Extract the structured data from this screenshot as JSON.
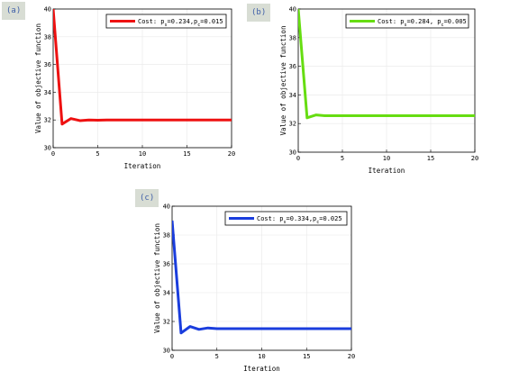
{
  "chart_data": [
    {
      "type": "line",
      "panel_label": "(a)",
      "xlabel": "Iteration",
      "ylabel": "Value of objective function",
      "xlim": [
        0,
        20
      ],
      "ylim": [
        30,
        40
      ],
      "xticks": [
        "0",
        "5",
        "10",
        "15",
        "20"
      ],
      "yticks": [
        "30",
        "32",
        "34",
        "36",
        "38",
        "40"
      ],
      "grid": true,
      "legend_placement": "top-right",
      "legend_label": "Cost: p_s=0.234,p_c=0.015",
      "series": [
        {
          "name": "Cost: p_s=0.234,p_c=0.015",
          "color": "#ee1111",
          "x": [
            0,
            1,
            2,
            3,
            4,
            5,
            6,
            7,
            8,
            9,
            10,
            11,
            12,
            13,
            14,
            15,
            16,
            17,
            18,
            19,
            20
          ],
          "y": [
            40,
            31.7,
            32.1,
            31.95,
            32.0,
            31.98,
            32.0,
            32.0,
            32.0,
            32.0,
            32.0,
            32.0,
            32.0,
            32.0,
            32.0,
            32.0,
            32.0,
            32.0,
            32.0,
            32.0,
            32.0
          ]
        }
      ]
    },
    {
      "type": "line",
      "panel_label": "(b)",
      "xlabel": "Iteration",
      "ylabel": "Value of objective function",
      "xlim": [
        0,
        20
      ],
      "ylim": [
        30,
        40
      ],
      "xticks": [
        "0",
        "5",
        "10",
        "15",
        "20"
      ],
      "yticks": [
        "30",
        "32",
        "34",
        "36",
        "38",
        "40"
      ],
      "grid": true,
      "legend_placement": "top-right",
      "legend_label": "Cost: p_s=0.284, p_c=0.005",
      "series": [
        {
          "name": "Cost: p_s=0.284, p_c=0.005",
          "color": "#66dd11",
          "x": [
            0,
            1,
            2,
            3,
            4,
            5,
            6,
            7,
            8,
            9,
            10,
            11,
            12,
            13,
            14,
            15,
            16,
            17,
            18,
            19,
            20
          ],
          "y": [
            40,
            32.4,
            32.6,
            32.55,
            32.55,
            32.55,
            32.55,
            32.55,
            32.55,
            32.55,
            32.55,
            32.55,
            32.55,
            32.55,
            32.55,
            32.55,
            32.55,
            32.55,
            32.55,
            32.55,
            32.55
          ]
        }
      ]
    },
    {
      "type": "line",
      "panel_label": "(c)",
      "xlabel": "Iteration",
      "ylabel": "Value of objective function",
      "xlim": [
        0,
        20
      ],
      "ylim": [
        30,
        40
      ],
      "xticks": [
        "0",
        "5",
        "10",
        "15",
        "20"
      ],
      "yticks": [
        "30",
        "32",
        "34",
        "36",
        "38",
        "40"
      ],
      "grid": true,
      "legend_placement": "top-right",
      "legend_label": "Cost: p_s=0.334,p_c=0.025",
      "series": [
        {
          "name": "Cost: p_s=0.334,p_c=0.025",
          "color": "#1a3ddd",
          "x": [
            0,
            1,
            2,
            3,
            4,
            5,
            6,
            7,
            8,
            9,
            10,
            11,
            12,
            13,
            14,
            15,
            16,
            17,
            18,
            19,
            20
          ],
          "y": [
            39.0,
            31.2,
            31.65,
            31.45,
            31.55,
            31.5,
            31.5,
            31.5,
            31.5,
            31.5,
            31.5,
            31.5,
            31.5,
            31.5,
            31.5,
            31.5,
            31.5,
            31.5,
            31.5,
            31.5,
            31.5
          ]
        }
      ]
    }
  ]
}
